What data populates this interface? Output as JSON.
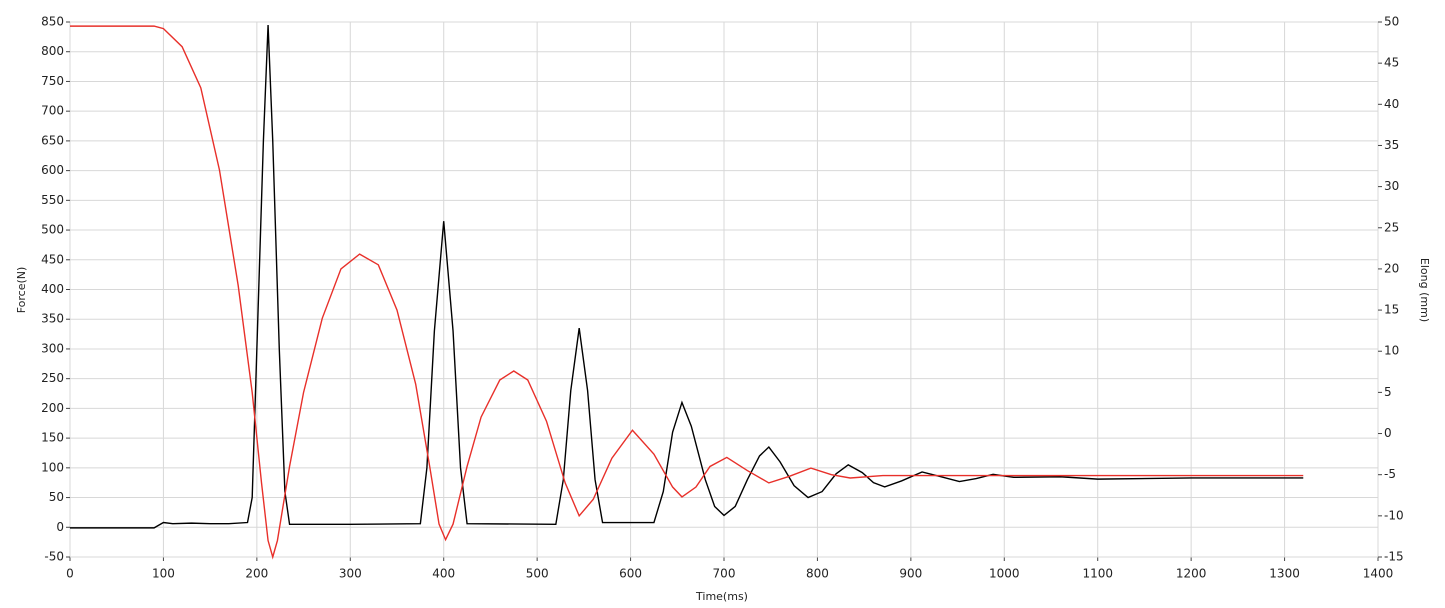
{
  "chart_data": {
    "type": "line",
    "xlabel": "Time(ms)",
    "ylabel": "Force(N)",
    "y2label": "Elong (mm)",
    "xlim": [
      0,
      1400
    ],
    "xticks": [
      0,
      100,
      200,
      300,
      400,
      500,
      600,
      700,
      800,
      900,
      1000,
      1100,
      1200,
      1300,
      1400
    ],
    "ylim": [
      -50,
      850
    ],
    "yticks": [
      -50,
      0,
      50,
      100,
      150,
      200,
      250,
      300,
      350,
      400,
      450,
      500,
      550,
      600,
      650,
      700,
      750,
      800,
      850
    ],
    "y2lim": [
      -15,
      50
    ],
    "y2ticks": [
      -15,
      -10,
      -5,
      0,
      5,
      10,
      15,
      20,
      25,
      30,
      35,
      40,
      45,
      50
    ],
    "grid": true,
    "series": [
      {
        "name": "Force",
        "color": "#000000",
        "axis": "y",
        "x": [
          0,
          90,
          100,
          110,
          130,
          150,
          170,
          190,
          195,
          200,
          207,
          212,
          217,
          224,
          230,
          235,
          300,
          375,
          382,
          390,
          400,
          410,
          418,
          425,
          520,
          528,
          536,
          545,
          554,
          562,
          570,
          625,
          635,
          645,
          655,
          665,
          680,
          690,
          700,
          712,
          725,
          738,
          748,
          760,
          775,
          790,
          805,
          820,
          833,
          848,
          860,
          872,
          890,
          912,
          930,
          952,
          970,
          988,
          1010,
          1060,
          1100,
          1200,
          1320
        ],
        "values": [
          -1,
          -1,
          8,
          6,
          7,
          6,
          6,
          8,
          50,
          300,
          650,
          845,
          650,
          300,
          60,
          5,
          5,
          6,
          100,
          330,
          515,
          330,
          100,
          6,
          5,
          80,
          230,
          335,
          230,
          80,
          8,
          8,
          60,
          160,
          210,
          170,
          80,
          35,
          20,
          35,
          80,
          120,
          135,
          110,
          70,
          50,
          60,
          90,
          105,
          92,
          75,
          68,
          78,
          93,
          86,
          77,
          82,
          89,
          84,
          85,
          81,
          83,
          83
        ]
      },
      {
        "name": "Elong",
        "color": "#e8302a",
        "axis": "y2",
        "x": [
          0,
          90,
          100,
          120,
          140,
          160,
          180,
          195,
          205,
          212,
          217,
          222,
          235,
          250,
          270,
          290,
          310,
          330,
          350,
          370,
          385,
          395,
          402,
          410,
          425,
          440,
          460,
          475,
          490,
          510,
          530,
          545,
          560,
          580,
          602,
          625,
          645,
          655,
          670,
          685,
          703,
          725,
          748,
          770,
          793,
          815,
          835,
          870,
          1320
        ],
        "values": [
          49.5,
          49.5,
          49.2,
          47,
          42,
          32,
          18,
          5,
          -6,
          -13,
          -15,
          -13,
          -4,
          5,
          14,
          20,
          21.8,
          20.5,
          15,
          6,
          -4,
          -11,
          -12.9,
          -11,
          -4,
          2,
          6.5,
          7.6,
          6.5,
          1.5,
          -6,
          -10,
          -8,
          -3,
          0.4,
          -2.5,
          -6.5,
          -7.7,
          -6.5,
          -4,
          -2.9,
          -4.5,
          -6,
          -5.2,
          -4.2,
          -5,
          -5.4,
          -5.1,
          -5.1
        ]
      }
    ]
  }
}
